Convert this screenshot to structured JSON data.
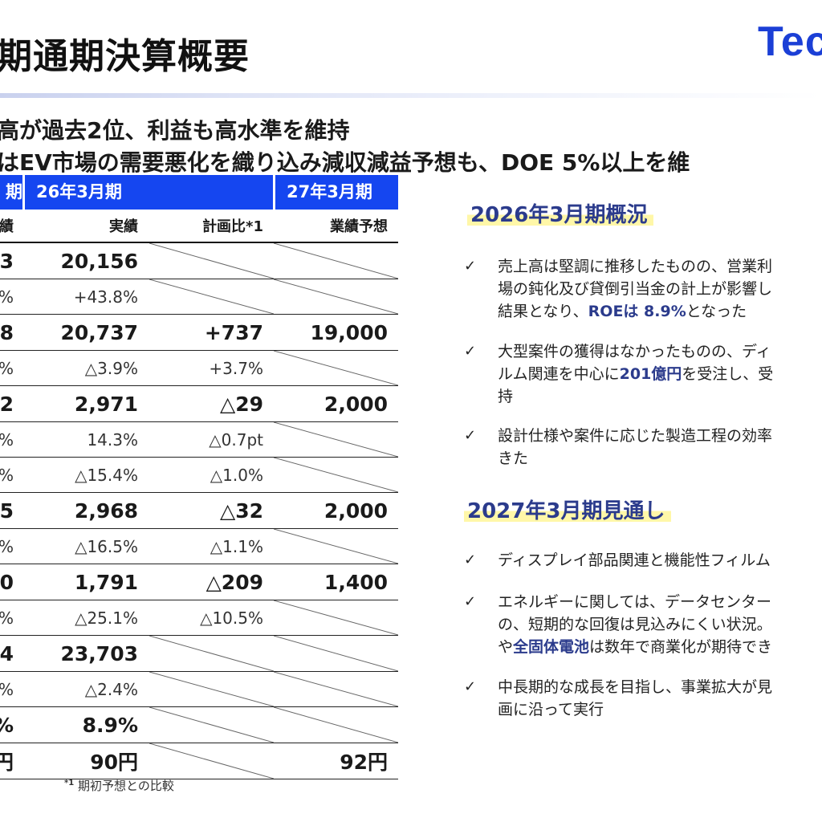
{
  "slide": {
    "title": "期通期決算概要",
    "logo_text": "Tec",
    "lead_line_1": "高が過去2位、利益も高水準を維持",
    "lead_line_2": "はEV市場の需要悪化を織り込み減収減益予想も、DOE 5%以上を維"
  },
  "table": {
    "header": {
      "col0": "期",
      "group_fy26": "26年3月期",
      "group_fy27": "27年3月期"
    },
    "subheader": {
      "col0": "績",
      "actual": "実績",
      "plan_ratio": "計画比*1",
      "forecast": "業績予想"
    },
    "rows": [
      {
        "c0": "3",
        "c1": "20,156",
        "c2": "",
        "c3": "",
        "big": true,
        "diag2": true,
        "diag3": true
      },
      {
        "c0": "%",
        "c1": "+43.8%",
        "c2": "",
        "c3": "",
        "big": false,
        "diag2": true,
        "diag3": true
      },
      {
        "c0": "8",
        "c1": "20,737",
        "c2": "+737",
        "c3": "19,000",
        "big": true,
        "diag2": false,
        "diag3": false
      },
      {
        "c0": "%",
        "c1": "△3.9%",
        "c2": "+3.7%",
        "c3": "",
        "big": false,
        "diag2": false,
        "diag3": true
      },
      {
        "c0": "2",
        "c1": "2,971",
        "c2": "△29",
        "c3": "2,000",
        "big": true,
        "diag2": false,
        "diag3": false
      },
      {
        "c0": "%",
        "c1": "14.3%",
        "c2": "△0.7pt",
        "c3": "",
        "big": false,
        "diag2": false,
        "diag3": true
      },
      {
        "c0": "%",
        "c1": "△15.4%",
        "c2": "△1.0%",
        "c3": "",
        "big": false,
        "diag2": false,
        "diag3": true
      },
      {
        "c0": "5",
        "c1": "2,968",
        "c2": "△32",
        "c3": "2,000",
        "big": true,
        "diag2": false,
        "diag3": false
      },
      {
        "c0": "%",
        "c1": "△16.5%",
        "c2": "△1.1%",
        "c3": "",
        "big": false,
        "diag2": false,
        "diag3": true
      },
      {
        "c0": "0",
        "c1": "1,791",
        "c2": "△209",
        "c3": "1,400",
        "big": true,
        "diag2": false,
        "diag3": false
      },
      {
        "c0": "%",
        "c1": "△25.1%",
        "c2": "△10.5%",
        "c3": "",
        "big": false,
        "diag2": false,
        "diag3": true
      },
      {
        "c0": "4",
        "c1": "23,703",
        "c2": "",
        "c3": "",
        "big": true,
        "diag2": true,
        "diag3": true
      },
      {
        "c0": "%",
        "c1": "△2.4%",
        "c2": "",
        "c3": "",
        "big": false,
        "diag2": true,
        "diag3": true
      },
      {
        "c0": "%",
        "c1": "8.9%",
        "c2": "",
        "c3": "",
        "big": true,
        "diag2": true,
        "diag3": true
      },
      {
        "c0": "円",
        "c1": "90円",
        "c2": "",
        "c3": "92円",
        "big": true,
        "diag2": true,
        "diag3": false
      }
    ],
    "footnote_mark": "*1",
    "footnote_text": "期初予想との比較"
  },
  "overview_2026": {
    "title": "2026年3月期概況",
    "check_icon": "✓",
    "bullets": [
      {
        "lines": [
          [
            {
              "t": "売上高は堅調に推移したものの、営業利"
            }
          ],
          [
            {
              "t": "場の鈍化及び貸倒引当金の計上が影響し"
            }
          ],
          [
            {
              "t": "結果となり、"
            },
            {
              "t": "ROEは 8.9%",
              "hl": true
            },
            {
              "t": "となった"
            }
          ]
        ]
      },
      {
        "lines": [
          [
            {
              "t": "大型案件の獲得はなかったものの、ディ"
            }
          ],
          [
            {
              "t": "ルム関連を中心に"
            },
            {
              "t": "201億円",
              "hl": true
            },
            {
              "t": "を受注し、受"
            }
          ],
          [
            {
              "t": "持"
            }
          ]
        ]
      },
      {
        "lines": [
          [
            {
              "t": "設計仕様や案件に応じた製造工程の効率"
            }
          ],
          [
            {
              "t": "きた"
            }
          ]
        ]
      }
    ]
  },
  "outlook_2027": {
    "title": "2027年3月期見通し",
    "check_icon": "✓",
    "bullets": [
      {
        "lines": [
          [
            {
              "t": "ディスプレイ部品関連と機能性フィルム"
            }
          ]
        ]
      },
      {
        "lines": [
          [
            {
              "t": "エネルギーに関しては、データセンター"
            }
          ],
          [
            {
              "t": "の、短期的な回復は見込みにくい状況。"
            }
          ],
          [
            {
              "t": "や"
            },
            {
              "t": "全固体電池",
              "hl": true
            },
            {
              "t": "は数年で商業化が期待でき"
            }
          ]
        ]
      },
      {
        "lines": [
          [
            {
              "t": "中長期的な成長を目指し、事業拡大が見"
            }
          ],
          [
            {
              "t": "画に沿って実行"
            }
          ]
        ]
      }
    ]
  }
}
